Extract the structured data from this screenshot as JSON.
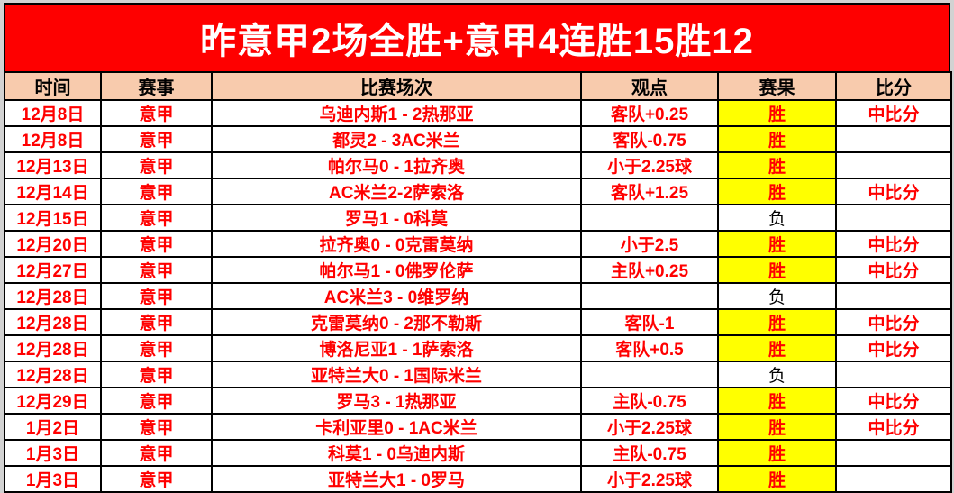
{
  "banner": {
    "title": "昨意甲2场全胜+意甲4连胜15胜12"
  },
  "colors": {
    "banner_bg": "#fe0000",
    "header_bg": "#f8cbad",
    "win_bg": "#ffff00",
    "text_red": "#ff0000",
    "page_bg": "#d2d2d2"
  },
  "table": {
    "columns": [
      "时间",
      "赛事",
      "比赛场次",
      "观点",
      "赛果",
      "比分"
    ],
    "win_label": "胜",
    "lose_label": "负",
    "rows": [
      {
        "date": "12月8日",
        "league": "意甲",
        "match": "乌迪内斯1 - 2热那亚",
        "view": "客队+0.25",
        "result": "胜",
        "note": "中比分"
      },
      {
        "date": "12月8日",
        "league": "意甲",
        "match": "都灵2 - 3AC米兰",
        "view": "客队-0.75",
        "result": "胜",
        "note": ""
      },
      {
        "date": "12月13日",
        "league": "意甲",
        "match": "帕尔马0 - 1拉齐奥",
        "view": "小于2.25球",
        "result": "胜",
        "note": ""
      },
      {
        "date": "12月14日",
        "league": "意甲",
        "match": "AC米兰2-2萨索洛",
        "view": "客队+1.25",
        "result": "胜",
        "note": "中比分"
      },
      {
        "date": "12月15日",
        "league": "意甲",
        "match": "罗马1 - 0科莫",
        "view": "",
        "result": "负",
        "note": ""
      },
      {
        "date": "12月20日",
        "league": "意甲",
        "match": "拉齐奥0 - 0克雷莫纳",
        "view": "小于2.5",
        "result": "胜",
        "note": "中比分"
      },
      {
        "date": "12月27日",
        "league": "意甲",
        "match": "帕尔马1 - 0佛罗伦萨",
        "view": "主队+0.25",
        "result": "胜",
        "note": "中比分"
      },
      {
        "date": "12月28日",
        "league": "意甲",
        "match": "AC米兰3 - 0维罗纳",
        "view": "",
        "result": "负",
        "note": ""
      },
      {
        "date": "12月28日",
        "league": "意甲",
        "match": "克雷莫纳0 - 2那不勒斯",
        "view": "客队-1",
        "result": "胜",
        "note": "中比分"
      },
      {
        "date": "12月28日",
        "league": "意甲",
        "match": "博洛尼亚1 - 1萨索洛",
        "view": "客队+0.5",
        "result": "胜",
        "note": "中比分"
      },
      {
        "date": "12月28日",
        "league": "意甲",
        "match": "亚特兰大0 - 1国际米兰",
        "view": "",
        "result": "负",
        "note": ""
      },
      {
        "date": "12月29日",
        "league": "意甲",
        "match": "罗马3 - 1热那亚",
        "view": "主队-0.75",
        "result": "胜",
        "note": "中比分"
      },
      {
        "date": "1月2日",
        "league": "意甲",
        "match": "卡利亚里0 - 1AC米兰",
        "view": "小于2.25球",
        "result": "胜",
        "note": "中比分"
      },
      {
        "date": "1月3日",
        "league": "意甲",
        "match": "科莫1 - 0乌迪内斯",
        "view": "主队-0.75",
        "result": "胜",
        "note": ""
      },
      {
        "date": "1月3日",
        "league": "意甲",
        "match": "亚特兰大1 - 0罗马",
        "view": "小于2.25球",
        "result": "胜",
        "note": ""
      }
    ]
  }
}
